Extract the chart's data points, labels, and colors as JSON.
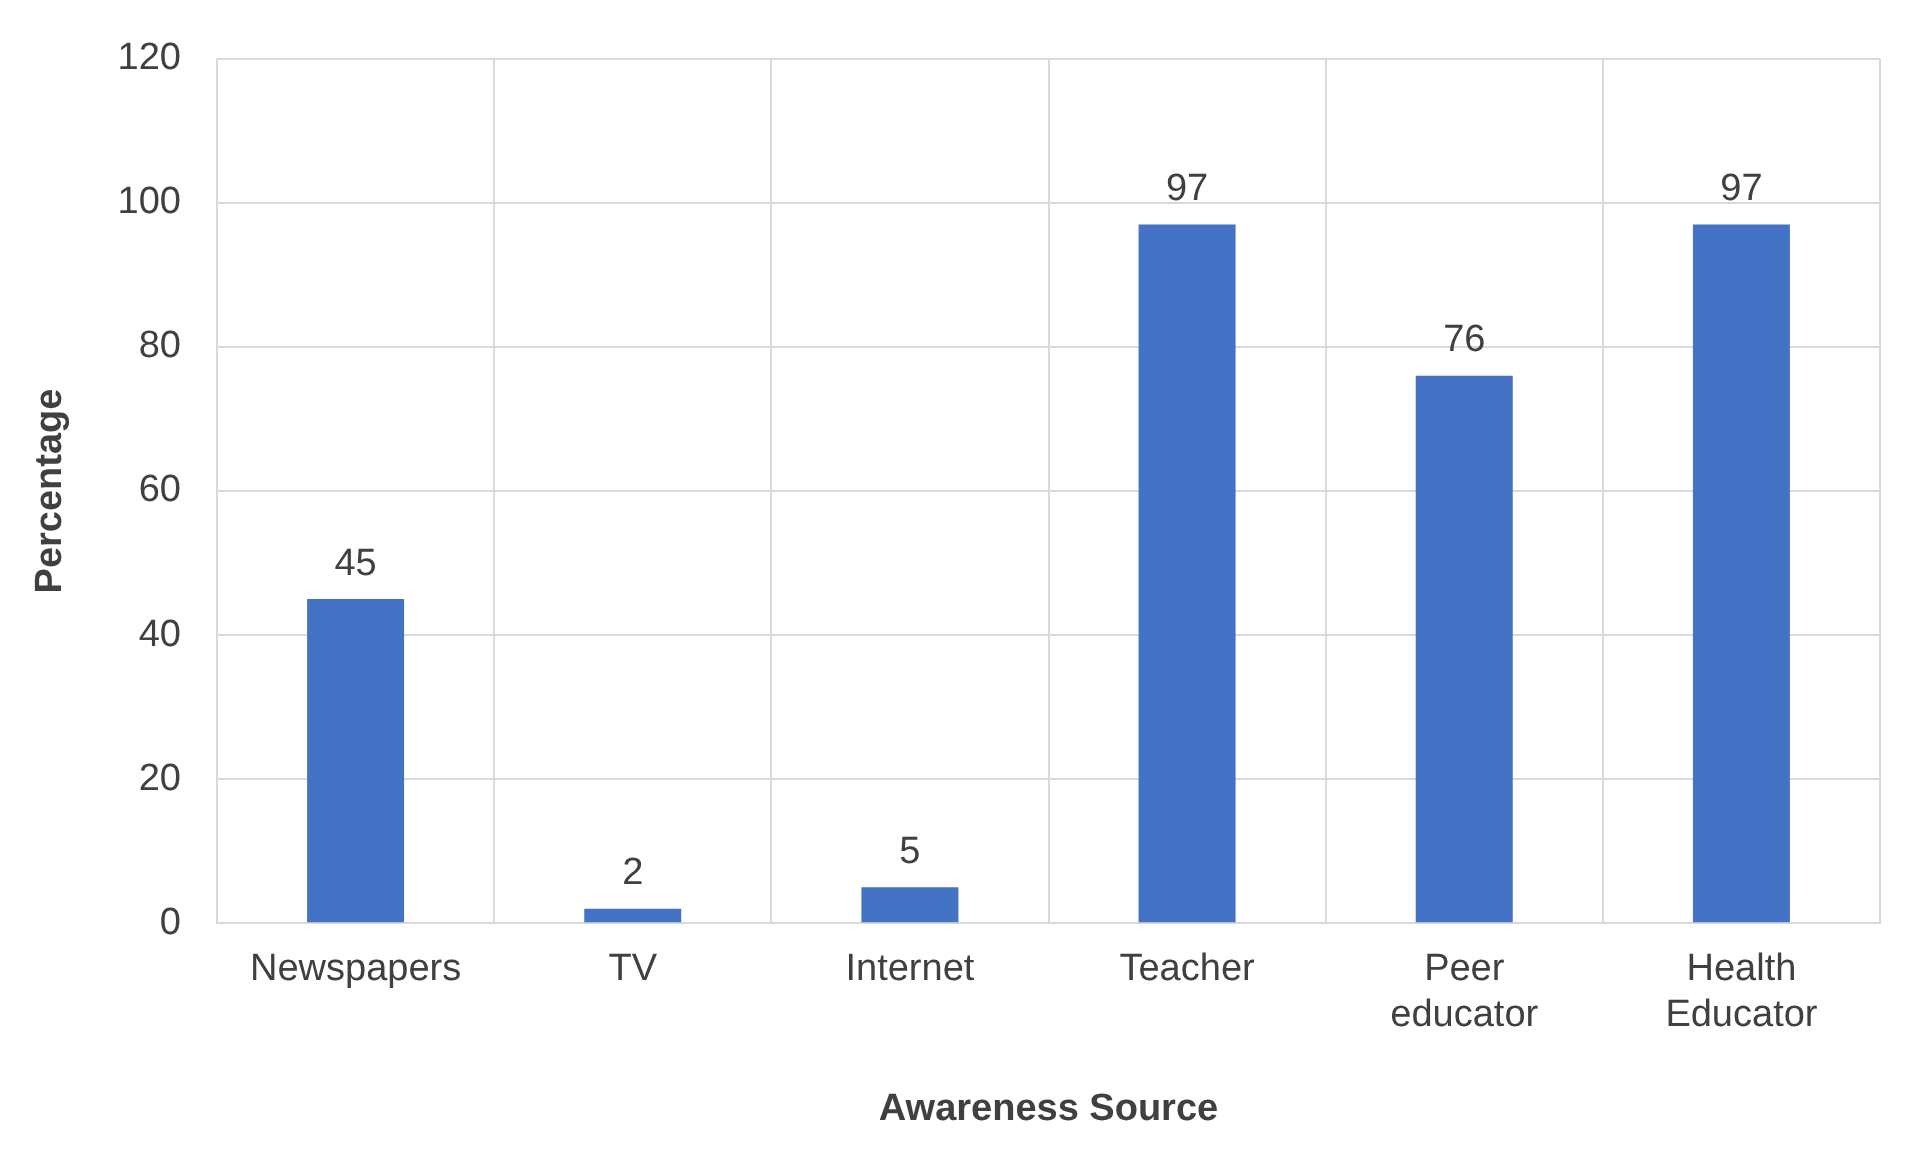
{
  "chart_data": {
    "type": "bar",
    "xlabel": "Awareness Source",
    "ylabel": "Percentage",
    "categories": [
      "Newspapers",
      "TV",
      "Internet",
      "Teacher",
      "Peer educator",
      "Health Educator"
    ],
    "values": [
      45,
      2,
      5,
      97,
      76,
      97
    ],
    "color": "#4472c4",
    "ylim": [
      0,
      120
    ],
    "yticks": [
      0,
      20,
      40,
      60,
      80,
      100,
      120
    ],
    "grid": true,
    "data_labels": true
  }
}
